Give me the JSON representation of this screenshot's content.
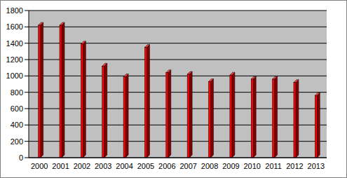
{
  "chart_data": {
    "type": "bar",
    "categories": [
      "2000",
      "2001",
      "2002",
      "2003",
      "2004",
      "2005",
      "2006",
      "2007",
      "2008",
      "2009",
      "2010",
      "2011",
      "2012",
      "2013"
    ],
    "values": [
      1620,
      1620,
      1390,
      1120,
      990,
      1350,
      1040,
      1020,
      930,
      1010,
      960,
      960,
      920,
      760
    ],
    "color": "#ff0000",
    "ylim": [
      0,
      1800
    ],
    "yticks": [
      0,
      200,
      400,
      600,
      800,
      1000,
      1200,
      1400,
      1600,
      1800
    ],
    "grid": true
  }
}
